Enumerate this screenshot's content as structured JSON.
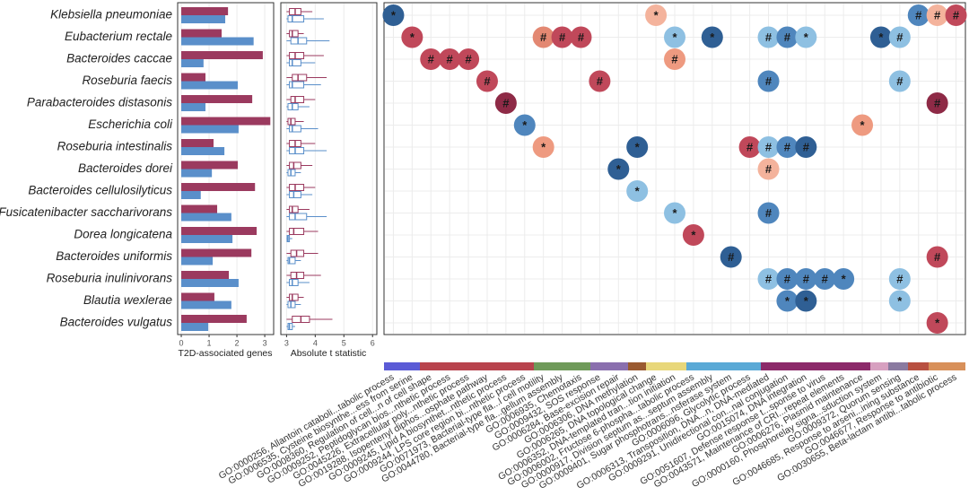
{
  "chart_data": [
    {
      "type": "bar",
      "xlabel": "T2D-associated genes",
      "categories": [
        "Klebsiella pneumoniae",
        "Eubacterium rectale",
        "Bacteroides caccae",
        "Roseburia faecis",
        "Parabacteroides distasonis",
        "Escherichia coli",
        "Roseburia intestinalis",
        "Bacteroides dorei",
        "Bacteroides cellulosilyticus",
        "Fusicatenibacter saccharivorans",
        "Dorea longicatena",
        "Bacteroides uniformis",
        "Roseburia inulinivorans",
        "Blautia wexlerae",
        "Bacteroides vulgatus"
      ],
      "xlim": [
        -0.13,
        3.32
      ],
      "xticks": [
        0,
        1,
        2,
        3
      ],
      "grid": true,
      "series": [
        {
          "color": "#9b3a5f",
          "values": [
            1.68,
            1.45,
            2.93,
            0.87,
            2.55,
            3.2,
            1.16,
            2.03,
            2.65,
            1.29,
            2.71,
            2.52,
            1.71,
            1.19,
            2.35
          ]
        },
        {
          "color": "#5a8fca",
          "values": [
            1.58,
            2.6,
            0.8,
            2.03,
            0.87,
            2.06,
            1.55,
            1.1,
            0.7,
            1.8,
            1.84,
            1.13,
            2.06,
            1.8,
            0.97
          ]
        }
      ]
    },
    {
      "type": "box",
      "xlabel": "Absolute t statistic",
      "xlim": [
        2.8,
        6.15
      ],
      "xticks": [
        3,
        4,
        5,
        6
      ],
      "grid": true,
      "series": [
        {
          "color": "#9b3a5f",
          "stats": [
            [
              3.0,
              3.1,
              3.3,
              3.5,
              3.9
            ],
            [
              3.0,
              3.1,
              3.2,
              3.4,
              3.6
            ],
            [
              3.0,
              3.1,
              3.3,
              3.6,
              4.3
            ],
            [
              3.0,
              3.2,
              3.4,
              3.7,
              4.4
            ],
            [
              3.0,
              3.15,
              3.3,
              3.6,
              4.0
            ],
            [
              3.0,
              3.05,
              3.15,
              3.3,
              3.6
            ],
            [
              3.0,
              3.1,
              3.3,
              3.5,
              4.0
            ],
            [
              3.0,
              3.1,
              3.25,
              3.5,
              3.9
            ],
            [
              3.0,
              3.1,
              3.3,
              3.6,
              4.0
            ],
            [
              3.0,
              3.1,
              3.2,
              3.4,
              3.8
            ],
            [
              3.0,
              3.1,
              3.25,
              3.6,
              4.1
            ],
            [
              3.0,
              3.15,
              3.35,
              3.6,
              4.1
            ],
            [
              3.0,
              3.15,
              3.35,
              3.6,
              4.2
            ],
            [
              3.0,
              3.1,
              3.2,
              3.4,
              3.6
            ],
            [
              3.0,
              3.2,
              3.5,
              3.8,
              4.6
            ]
          ]
        },
        {
          "color": "#5a8fca",
          "stats": [
            [
              3.0,
              3.05,
              3.2,
              3.6,
              4.3
            ],
            [
              3.0,
              3.15,
              3.4,
              3.7,
              4.5
            ],
            [
              3.0,
              3.1,
              3.2,
              3.5,
              4.0
            ],
            [
              3.0,
              3.1,
              3.2,
              3.6,
              4.2
            ],
            [
              3.0,
              3.05,
              3.2,
              3.4,
              3.8
            ],
            [
              3.0,
              3.1,
              3.2,
              3.5,
              4.1
            ],
            [
              3.0,
              3.1,
              3.3,
              3.6,
              4.4
            ],
            [
              3.0,
              3.05,
              3.15,
              3.3,
              3.5
            ],
            [
              3.0,
              3.1,
              3.25,
              3.5,
              3.9
            ],
            [
              3.0,
              3.1,
              3.3,
              3.7,
              4.4
            ],
            [
              3.0,
              3.02,
              3.05,
              3.1,
              3.2
            ],
            [
              3.0,
              3.05,
              3.1,
              3.3,
              3.5
            ],
            [
              3.0,
              3.1,
              3.2,
              3.4,
              3.8
            ],
            [
              3.0,
              3.05,
              3.15,
              3.3,
              3.5
            ],
            [
              3.0,
              3.05,
              3.1,
              3.2,
              3.3
            ]
          ]
        }
      ]
    },
    {
      "type": "bubble",
      "terms": [
        "GO:0000256, Allantoin cataboli...tabolic process",
        "GO:0006535, Cysteine biosynthe...ess from serine",
        "GO:0008360, Regulation of cell...n of cell shape",
        "GO:0009252, Peptidoglycan bios...nthetic process",
        "GO:0045226, Extracellular poly...nthetic process",
        "GO:0019288, Isopentenyl diphos...osphate pathway",
        "GO:0009245, Lipid A biosynthet...nthetic process",
        "GO:0009244, LPS core region bi...nthetic process",
        "GO:0071973, Bacterial-type fla...l cell motility",
        "GO:0044780, Bacterial-type fla...gellum assembly",
        "GO:0006935, Chemotaxis",
        "GO:0009432, SOS response",
        "GO:0006284, Base-excision repair",
        "GO:0006306, DNA methylation",
        "GO:0006265, DNA topological change",
        "GO:0006352, DNA-templated tran...tion initiation",
        "GO:0006002, Fructose 6-phospha...tabolic process",
        "GO:0000917, Division septum as...septum assembly",
        "GO:0009401, Sugar phosphotrans...nsferase system",
        "GO:0006096, Glycolytic process",
        "GO:0006313, Transposition, DNA...n, DNA-mediated",
        "GO:0009291, Unidirectional con...nal conjugation",
        "GO:0015074, DNA integration",
        "GO:0051607, Defense response t...sponse to virus",
        "GO:0043571, Maintenance of CRI...repeat elements",
        "GO:0006276, Plasmid maintenance",
        "GO:0000160, Phosphorelay signa...sduction system",
        "GO:0009372, Quorum sensing",
        "GO:0046685, Response to arseni...ining substance",
        "GO:0046677, Response to antibiotic",
        "GO:0030655, Beta-lactam antibi...tabolic process"
      ],
      "cells": [
        [
          {
            "label": "*",
            "color": "#2f5f94"
          },
          null,
          null,
          null,
          null,
          null,
          null,
          null,
          null,
          null,
          null,
          null,
          null,
          null,
          {
            "label": "*",
            "color": "#f4b39c"
          },
          null,
          null,
          null,
          null,
          null,
          null,
          null,
          null,
          null,
          null,
          null,
          null,
          null,
          {
            "label": "#",
            "color": "#4f86bd"
          },
          {
            "label": "#",
            "color": "#f4b39c"
          },
          {
            "label": "#",
            "color": "#c0485a"
          }
        ],
        [
          null,
          {
            "label": "*",
            "color": "#c0485a"
          },
          null,
          null,
          null,
          null,
          null,
          null,
          {
            "label": "#",
            "color": "#e38872"
          },
          {
            "label": "#",
            "color": "#c0485a"
          },
          {
            "label": "#",
            "color": "#c0485a"
          },
          null,
          null,
          null,
          null,
          {
            "label": "*",
            "color": "#8ec0e2"
          },
          null,
          {
            "label": "*",
            "color": "#2f5f94"
          },
          null,
          null,
          {
            "label": "#",
            "color": "#8ec0e2"
          },
          {
            "label": "#",
            "color": "#4f86bd"
          },
          {
            "label": "*",
            "color": "#8ec0e2"
          },
          null,
          null,
          null,
          {
            "label": "*",
            "color": "#2f5f94"
          },
          {
            "label": "#",
            "color": "#8ec0e2"
          },
          null,
          null,
          null
        ],
        [
          null,
          null,
          {
            "label": "#",
            "color": "#c0485a"
          },
          {
            "label": "#",
            "color": "#c0485a"
          },
          {
            "label": "#",
            "color": "#c0485a"
          },
          null,
          null,
          null,
          null,
          null,
          null,
          null,
          null,
          null,
          null,
          {
            "label": "#",
            "color": "#ee9a80"
          },
          null,
          null,
          null,
          null,
          null,
          null,
          null,
          null,
          null,
          null,
          null,
          null,
          null,
          null,
          null
        ],
        [
          null,
          null,
          null,
          null,
          null,
          {
            "label": "#",
            "color": "#c0485a"
          },
          null,
          null,
          null,
          null,
          null,
          {
            "label": "#",
            "color": "#c0485a"
          },
          null,
          null,
          null,
          null,
          null,
          null,
          null,
          null,
          {
            "label": "#",
            "color": "#4f86bd"
          },
          null,
          null,
          null,
          null,
          null,
          null,
          {
            "label": "#",
            "color": "#8ec0e2"
          },
          null,
          null,
          null
        ],
        [
          null,
          null,
          null,
          null,
          null,
          null,
          {
            "label": "#",
            "color": "#8e2a46"
          },
          null,
          null,
          null,
          null,
          null,
          null,
          null,
          null,
          null,
          null,
          null,
          null,
          null,
          null,
          null,
          null,
          null,
          null,
          null,
          null,
          null,
          null,
          {
            "label": "#",
            "color": "#8e2a46"
          },
          null
        ],
        [
          null,
          null,
          null,
          null,
          null,
          null,
          null,
          {
            "label": "*",
            "color": "#4f86bd"
          },
          null,
          null,
          null,
          null,
          null,
          null,
          null,
          null,
          null,
          null,
          null,
          null,
          null,
          null,
          null,
          null,
          null,
          {
            "label": "*",
            "color": "#ee9a80"
          },
          null,
          null,
          null,
          null,
          null
        ],
        [
          null,
          null,
          null,
          null,
          null,
          null,
          null,
          null,
          {
            "label": "*",
            "color": "#ee9a80"
          },
          null,
          null,
          null,
          null,
          {
            "label": "*",
            "color": "#2f5f94"
          },
          null,
          null,
          null,
          null,
          null,
          {
            "label": "#",
            "color": "#c0485a"
          },
          {
            "label": "#",
            "color": "#8ec0e2"
          },
          {
            "label": "#",
            "color": "#4f86bd"
          },
          {
            "label": "#",
            "color": "#2f5f94"
          },
          null,
          null,
          null,
          null,
          null,
          null,
          null,
          null
        ],
        [
          null,
          null,
          null,
          null,
          null,
          null,
          null,
          null,
          null,
          null,
          null,
          null,
          {
            "label": "*",
            "color": "#2f5f94"
          },
          null,
          null,
          null,
          null,
          null,
          null,
          null,
          {
            "label": "#",
            "color": "#f4b39c"
          },
          null,
          null,
          null,
          null,
          null,
          null,
          null,
          null,
          null,
          null
        ],
        [
          null,
          null,
          null,
          null,
          null,
          null,
          null,
          null,
          null,
          null,
          null,
          null,
          null,
          {
            "label": "*",
            "color": "#8ec0e2"
          },
          null,
          null,
          null,
          null,
          null,
          null,
          null,
          null,
          null,
          null,
          null,
          null,
          null,
          null,
          null,
          null,
          null
        ],
        [
          null,
          null,
          null,
          null,
          null,
          null,
          null,
          null,
          null,
          null,
          null,
          null,
          null,
          null,
          null,
          {
            "label": "*",
            "color": "#8ec0e2"
          },
          null,
          null,
          null,
          null,
          {
            "label": "#",
            "color": "#4f86bd"
          },
          null,
          null,
          null,
          null,
          null,
          null,
          null,
          null,
          null,
          null
        ],
        [
          null,
          null,
          null,
          null,
          null,
          null,
          null,
          null,
          null,
          null,
          null,
          null,
          null,
          null,
          null,
          null,
          {
            "label": "*",
            "color": "#c0485a"
          },
          null,
          null,
          null,
          null,
          null,
          null,
          null,
          null,
          null,
          null,
          null,
          null,
          null,
          null
        ],
        [
          null,
          null,
          null,
          null,
          null,
          null,
          null,
          null,
          null,
          null,
          null,
          null,
          null,
          null,
          null,
          null,
          null,
          null,
          {
            "label": "#",
            "color": "#2f5f94"
          },
          null,
          null,
          null,
          null,
          null,
          null,
          null,
          null,
          null,
          null,
          {
            "label": "#",
            "color": "#c0485a"
          },
          null
        ],
        [
          null,
          null,
          null,
          null,
          null,
          null,
          null,
          null,
          null,
          null,
          null,
          null,
          null,
          null,
          null,
          null,
          null,
          null,
          null,
          null,
          {
            "label": "#",
            "color": "#8ec0e2"
          },
          {
            "label": "#",
            "color": "#4f86bd"
          },
          {
            "label": "#",
            "color": "#4f86bd"
          },
          {
            "label": "#",
            "color": "#4f86bd"
          },
          {
            "label": "*",
            "color": "#4f86bd"
          },
          null,
          null,
          {
            "label": "#",
            "color": "#8ec0e2"
          },
          null,
          null,
          null
        ],
        [
          null,
          null,
          null,
          null,
          null,
          null,
          null,
          null,
          null,
          null,
          null,
          null,
          null,
          null,
          null,
          null,
          null,
          null,
          null,
          null,
          null,
          {
            "label": "*",
            "color": "#4f86bd"
          },
          {
            "label": "*",
            "color": "#2f5f94"
          },
          null,
          null,
          null,
          null,
          {
            "label": "*",
            "color": "#8ec0e2"
          },
          null,
          null,
          null
        ],
        [
          null,
          null,
          null,
          null,
          null,
          null,
          null,
          null,
          null,
          null,
          null,
          null,
          null,
          null,
          null,
          null,
          null,
          null,
          null,
          null,
          null,
          null,
          null,
          null,
          null,
          null,
          null,
          null,
          null,
          {
            "label": "*",
            "color": "#c0485a"
          },
          null
        ]
      ]
    }
  ]
}
